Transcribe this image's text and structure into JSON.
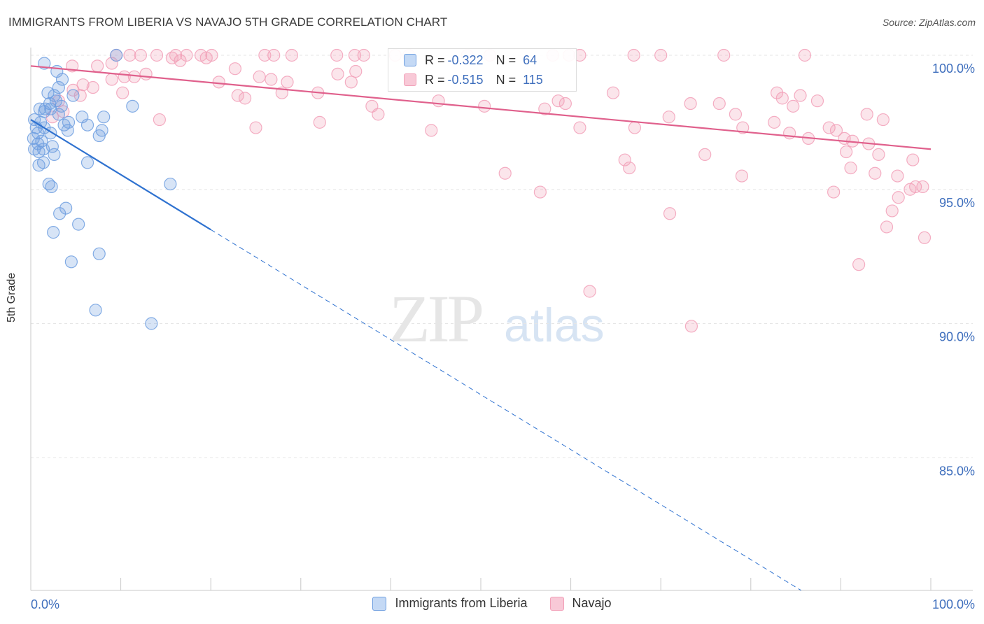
{
  "chart_data": {
    "type": "scatter",
    "title": "IMMIGRANTS FROM LIBERIA VS NAVAJO 5TH GRADE CORRELATION CHART",
    "source": "Source: ZipAtlas.com",
    "xlabel": "",
    "ylabel": "5th Grade",
    "xlim": [
      0,
      100
    ],
    "ylim": [
      80.7,
      101.0
    ],
    "x_tick_labels": [
      "0.0%",
      "100.0%"
    ],
    "y_ticks": [
      100,
      95,
      90,
      85
    ],
    "y_tick_labels": [
      "100.0%",
      "95.0%",
      "90.0%",
      "85.0%"
    ],
    "grid": true,
    "watermark": "ZIPatlas",
    "series": [
      {
        "name": "Immigrants from Liberia",
        "color": "#6f9fe0",
        "line_color": "#2f72d0",
        "R": "-0.322",
        "N": "64",
        "trend": {
          "x0": 0,
          "y0": 97.6,
          "x1": 20,
          "y1": 93.5,
          "dash_to_x": 100
        },
        "points": [
          [
            9.5,
            100
          ],
          [
            1.5,
            99.7
          ],
          [
            2.9,
            99.4
          ],
          [
            3.5,
            99.1
          ],
          [
            3.1,
            98.8
          ],
          [
            4.7,
            98.5
          ],
          [
            1.9,
            98.6
          ],
          [
            2.6,
            98.5
          ],
          [
            2.1,
            98.2
          ],
          [
            3.4,
            98.1
          ],
          [
            1.6,
            98
          ],
          [
            2.2,
            98
          ],
          [
            2.8,
            98.3
          ],
          [
            1,
            98
          ],
          [
            11.3,
            98.1
          ],
          [
            1.5,
            97.9
          ],
          [
            3.1,
            97.8
          ],
          [
            5.7,
            97.7
          ],
          [
            8.1,
            97.7
          ],
          [
            0.4,
            97.6
          ],
          [
            1.1,
            97.5
          ],
          [
            4.2,
            97.5
          ],
          [
            3.7,
            97.4
          ],
          [
            6.3,
            97.4
          ],
          [
            0.6,
            97.3
          ],
          [
            1.5,
            97.3
          ],
          [
            4.1,
            97.2
          ],
          [
            7.9,
            97.2
          ],
          [
            0.8,
            97.1
          ],
          [
            2.2,
            97.1
          ],
          [
            7.6,
            97
          ],
          [
            0.3,
            96.9
          ],
          [
            1.2,
            96.8
          ],
          [
            0.8,
            96.7
          ],
          [
            2.4,
            96.6
          ],
          [
            0.4,
            96.5
          ],
          [
            1.4,
            96.5
          ],
          [
            0.9,
            96.4
          ],
          [
            2.6,
            96.3
          ],
          [
            6.3,
            96
          ],
          [
            1.4,
            96
          ],
          [
            0.9,
            95.9
          ],
          [
            2,
            95.2
          ],
          [
            2.3,
            95.1
          ],
          [
            15.5,
            95.2
          ],
          [
            3.9,
            94.3
          ],
          [
            3.2,
            94.1
          ],
          [
            5.3,
            93.7
          ],
          [
            2.5,
            93.4
          ],
          [
            7.6,
            92.6
          ],
          [
            4.5,
            92.3
          ],
          [
            7.2,
            90.5
          ],
          [
            13.4,
            90
          ]
        ]
      },
      {
        "name": "Navajo",
        "color": "#f2a0b8",
        "line_color": "#e0608c",
        "R": "-0.515",
        "N": "115",
        "trend": {
          "x0": 0,
          "y0": 99.6,
          "x1": 100,
          "y1": 96.5
        },
        "points": [
          [
            9.5,
            100
          ],
          [
            11,
            100
          ],
          [
            12.2,
            100
          ],
          [
            14,
            100
          ],
          [
            16.1,
            100
          ],
          [
            17.3,
            100
          ],
          [
            18.9,
            100
          ],
          [
            20.1,
            100
          ],
          [
            26,
            100
          ],
          [
            27,
            100
          ],
          [
            29,
            100
          ],
          [
            34,
            100
          ],
          [
            36,
            100
          ],
          [
            37,
            100
          ],
          [
            40.5,
            100
          ],
          [
            42,
            100
          ],
          [
            48.5,
            100
          ],
          [
            51,
            100
          ],
          [
            58,
            100
          ],
          [
            59.8,
            100
          ],
          [
            61,
            100
          ],
          [
            67,
            100
          ],
          [
            70,
            100
          ],
          [
            77,
            100
          ],
          [
            86,
            100
          ],
          [
            15.7,
            99.9
          ],
          [
            19.5,
            99.9
          ],
          [
            9,
            99.7
          ],
          [
            4.6,
            99.6
          ],
          [
            7.4,
            99.6
          ],
          [
            16.6,
            99.8
          ],
          [
            22.7,
            99.5
          ],
          [
            34.1,
            99.3
          ],
          [
            36.1,
            99.4
          ],
          [
            11.5,
            99.2
          ],
          [
            12.8,
            99.3
          ],
          [
            25.4,
            99.2
          ],
          [
            9,
            99.1
          ],
          [
            10.4,
            99.2
          ],
          [
            26.7,
            99.1
          ],
          [
            20.9,
            99
          ],
          [
            28.5,
            99
          ],
          [
            35.6,
            99
          ],
          [
            5.8,
            98.9
          ],
          [
            6.9,
            98.8
          ],
          [
            4.7,
            98.7
          ],
          [
            10.2,
            98.6
          ],
          [
            27.9,
            98.6
          ],
          [
            23,
            98.5
          ],
          [
            23.8,
            98.4
          ],
          [
            31.9,
            98.6
          ],
          [
            5.5,
            98.5
          ],
          [
            3.1,
            98.3
          ],
          [
            37.9,
            98.1
          ],
          [
            45.3,
            98.3
          ],
          [
            50.4,
            98.1
          ],
          [
            59.4,
            98.2
          ],
          [
            73.3,
            98.2
          ],
          [
            76.5,
            98.2
          ],
          [
            85.5,
            98.5
          ],
          [
            82.9,
            98.6
          ],
          [
            83.5,
            98.4
          ],
          [
            84.7,
            98.1
          ],
          [
            87.4,
            98.3
          ],
          [
            64.7,
            98.6
          ],
          [
            92.9,
            97.8
          ],
          [
            94.7,
            97.6
          ],
          [
            3.6,
            97.9
          ],
          [
            2.4,
            97.7
          ],
          [
            14.3,
            97.6
          ],
          [
            25,
            97.3
          ],
          [
            32.1,
            97.5
          ],
          [
            38.6,
            97.8
          ],
          [
            44.5,
            97.2
          ],
          [
            57.1,
            98
          ],
          [
            58.6,
            98.3
          ],
          [
            61,
            97.3
          ],
          [
            67.1,
            97.3
          ],
          [
            70.9,
            97.7
          ],
          [
            78.3,
            97.8
          ],
          [
            79.1,
            97.3
          ],
          [
            82.6,
            97.5
          ],
          [
            84.3,
            97.1
          ],
          [
            86.4,
            96.9
          ],
          [
            88.7,
            97.3
          ],
          [
            89.5,
            97.2
          ],
          [
            90.4,
            96.9
          ],
          [
            91.3,
            96.8
          ],
          [
            93.1,
            96.7
          ],
          [
            66,
            96.1
          ],
          [
            74.9,
            96.3
          ],
          [
            90.6,
            96.4
          ],
          [
            94.2,
            96.3
          ],
          [
            98,
            96.1
          ],
          [
            52.7,
            95.6
          ],
          [
            66.5,
            95.8
          ],
          [
            79,
            95.5
          ],
          [
            91.1,
            95.8
          ],
          [
            93.8,
            95.6
          ],
          [
            96.3,
            95.5
          ],
          [
            97.7,
            95
          ],
          [
            98.3,
            95.1
          ],
          [
            99.1,
            95.1
          ],
          [
            56.6,
            94.9
          ],
          [
            89.2,
            94.9
          ],
          [
            96.4,
            94.7
          ],
          [
            95.7,
            94.2
          ],
          [
            95.1,
            93.6
          ],
          [
            99.3,
            93.2
          ],
          [
            71,
            94.1
          ],
          [
            92,
            92.2
          ],
          [
            62.1,
            91.2
          ],
          [
            73.4,
            89.9
          ]
        ]
      }
    ]
  },
  "legend": {
    "r_label": "R =",
    "n_label": "N ="
  }
}
